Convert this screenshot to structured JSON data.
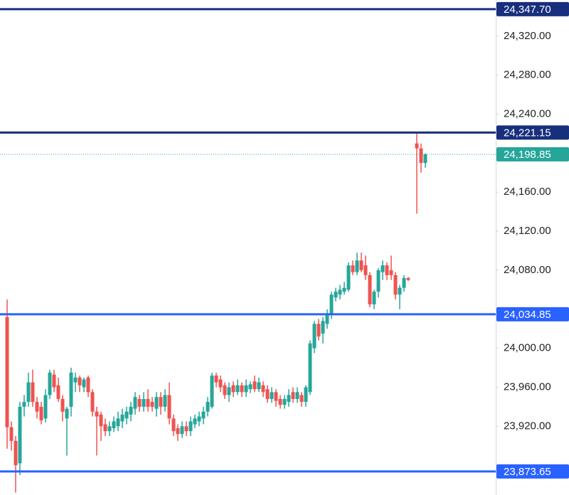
{
  "chart_data": {
    "type": "candlestick",
    "up_color": "#26a69a",
    "down_color": "#ef5350",
    "ylim": [
      23849.5,
      24357.1
    ],
    "yticks": [
      {
        "value": 24320,
        "label": "24,320.00"
      },
      {
        "value": 24280,
        "label": "24,280.00"
      },
      {
        "value": 24240,
        "label": "24,240.00"
      },
      {
        "value": 24160,
        "label": "24,160.00"
      },
      {
        "value": 24120,
        "label": "24,120.00"
      },
      {
        "value": 24080,
        "label": "24,080.00"
      },
      {
        "value": 24000,
        "label": "24,000.00"
      },
      {
        "value": 23960,
        "label": "23,960.00"
      },
      {
        "value": 23920,
        "label": "23,920.00"
      }
    ],
    "open": [
      24032,
      23919,
      23905,
      23882,
      23940,
      23945,
      23965,
      23945,
      23940,
      23928,
      23952,
      23973,
      23962,
      23948,
      23928,
      23940,
      23965,
      23970,
      23960,
      23970,
      23955,
      23935,
      23932,
      23922,
      23915,
      23918,
      23920,
      23925,
      23928,
      23932,
      23938,
      23948,
      23940,
      23948,
      23945,
      23938,
      23950,
      23940,
      23952,
      23928,
      23918,
      23912,
      23920,
      23915,
      23922,
      23925,
      23928,
      23935,
      23940,
      23972,
      23968,
      23962,
      23952,
      23962,
      23955,
      23962,
      23955,
      23958,
      23966,
      23958,
      23962,
      23958,
      23948,
      23955,
      23948,
      23942,
      23945,
      23955,
      23948,
      23952,
      23945,
      23955,
      24000,
      24025,
      24015,
      24025,
      24035,
      24052,
      24055,
      24058,
      24060,
      24085,
      24078,
      24090,
      24085,
      24075,
      24045,
      24058,
      24078,
      24085,
      24080,
      24075,
      24055,
      24062,
      24072,
      null,
      24210,
      24205,
      24190
    ],
    "high": [
      24050,
      23925,
      23910,
      23945,
      23952,
      23975,
      23978,
      23950,
      23945,
      23958,
      23978,
      23978,
      23970,
      23952,
      23940,
      23980,
      23975,
      23972,
      23970,
      23972,
      23958,
      23940,
      23935,
      23928,
      23925,
      23930,
      23935,
      23938,
      23940,
      23945,
      23955,
      23952,
      23955,
      23958,
      23950,
      23955,
      23955,
      23958,
      23965,
      23932,
      23922,
      23925,
      23925,
      23930,
      23932,
      23935,
      23940,
      23950,
      23975,
      23975,
      23972,
      23965,
      23965,
      23966,
      23968,
      23965,
      23968,
      23966,
      23972,
      23970,
      23966,
      23962,
      23960,
      23958,
      23952,
      23952,
      23958,
      23960,
      23960,
      23955,
      23962,
      24008,
      24028,
      24030,
      24032,
      24040,
      24058,
      24062,
      24065,
      24068,
      24088,
      24090,
      24098,
      24098,
      24095,
      24078,
      24060,
      24082,
      24090,
      24088,
      24095,
      24078,
      24065,
      24075,
      24073,
      null,
      24220,
      24210,
      24200
    ],
    "low": [
      23897,
      23895,
      23852,
      23870,
      23930,
      23940,
      23940,
      23928,
      23922,
      23924,
      23948,
      23955,
      23945,
      23925,
      23890,
      23930,
      23955,
      23955,
      23955,
      23950,
      23930,
      23890,
      23905,
      23910,
      23910,
      23914,
      23915,
      23918,
      23922,
      23925,
      23932,
      23935,
      23935,
      23935,
      23935,
      23930,
      23932,
      23935,
      23922,
      23910,
      23905,
      23908,
      23910,
      23910,
      23918,
      23920,
      23922,
      23930,
      23938,
      23960,
      23955,
      23948,
      23945,
      23950,
      23952,
      23950,
      23950,
      23954,
      23955,
      23955,
      23950,
      23944,
      23944,
      23940,
      23938,
      23938,
      23940,
      23944,
      23944,
      23940,
      23940,
      23952,
      23995,
      24008,
      24005,
      24020,
      24030,
      24048,
      24050,
      24055,
      24058,
      24075,
      24075,
      24078,
      24070,
      24042,
      24040,
      24052,
      24070,
      24070,
      24070,
      24050,
      24040,
      24058,
      24069,
      null,
      24138,
      24180,
      24185
    ],
    "close": [
      23919,
      23905,
      23880,
      23940,
      23945,
      23965,
      23945,
      23935,
      23926,
      23952,
      23975,
      23960,
      23948,
      23935,
      23938,
      23975,
      23970,
      23962,
      23968,
      23955,
      23935,
      23930,
      23920,
      23915,
      23920,
      23925,
      23928,
      23932,
      23935,
      23940,
      23950,
      23940,
      23948,
      23940,
      23940,
      23950,
      23940,
      23952,
      23928,
      23915,
      23912,
      23920,
      23915,
      23925,
      23928,
      23930,
      23935,
      23945,
      23972,
      23965,
      23960,
      23952,
      23960,
      23955,
      23962,
      23955,
      23962,
      23963,
      23958,
      23965,
      23955,
      23948,
      23955,
      23946,
      23942,
      23948,
      23952,
      23948,
      23955,
      23945,
      23960,
      24005,
      24025,
      24012,
      24028,
      24035,
      24055,
      24058,
      24060,
      24062,
      24085,
      24078,
      24090,
      24080,
      24075,
      24045,
      24058,
      24080,
      24085,
      24075,
      24075,
      24055,
      24062,
      24072,
      24070,
      null,
      24205,
      24190,
      24198.85
    ],
    "levels": [
      {
        "value": 24347.7,
        "label": "24,347.70",
        "color": "#172f7c",
        "style": "solid"
      },
      {
        "value": 24221.15,
        "label": "24,221.15",
        "color": "#172f7c",
        "style": "solid"
      },
      {
        "value": 24198.85,
        "label": "24,198.85",
        "color": "#26a69a",
        "style": "dotted"
      },
      {
        "value": 24034.85,
        "label": "24,034.85",
        "color": "#2962ff",
        "style": "solid"
      },
      {
        "value": 23873.65,
        "label": "23,873.65",
        "color": "#2962ff",
        "style": "solid"
      }
    ]
  }
}
